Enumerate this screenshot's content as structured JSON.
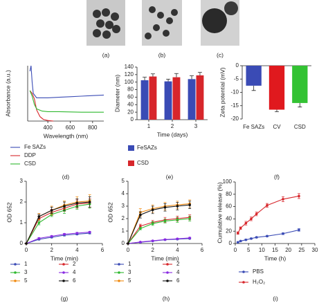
{
  "images": [
    "(a)",
    "(b)",
    "(c)"
  ],
  "chart_data": [
    {
      "type": "line",
      "panel": "(d)",
      "xlabel": "Wavelength (nm)",
      "ylabel": "Absorbance (a.u.)",
      "xlim": [
        220,
        900
      ],
      "xticks": [
        400,
        600,
        800
      ],
      "ylim": [
        0,
        1
      ],
      "markers": false,
      "series": [
        {
          "name": "Fe SAZs",
          "color": "#3a4bb5",
          "x": [
            240,
            250,
            260,
            270,
            300,
            400,
            500,
            600,
            700,
            800,
            900
          ],
          "values": [
            0.9,
            1.0,
            0.7,
            0.5,
            0.42,
            0.42,
            0.43,
            0.44,
            0.45,
            0.46,
            0.47
          ]
        },
        {
          "name": "DDP",
          "color": "#d7262b",
          "x": [
            240,
            260,
            280,
            300,
            330,
            360,
            400,
            450
          ],
          "values": [
            0.55,
            0.5,
            0.4,
            0.2,
            0.08,
            0.03,
            0.01,
            0
          ]
        },
        {
          "name": "CSD",
          "color": "#2fb82f",
          "x": [
            240,
            260,
            280,
            300,
            350,
            400,
            500,
            700,
            900
          ],
          "values": [
            0.55,
            0.45,
            0.3,
            0.22,
            0.18,
            0.17,
            0.17,
            0.16,
            0.16
          ]
        }
      ]
    },
    {
      "type": "bar",
      "panel": "(e)",
      "xlabel": "Time (days)",
      "ylabel": "Diameter (nm)",
      "categories": [
        "1",
        "2",
        "3"
      ],
      "ylim": [
        0,
        140
      ],
      "yticks": [
        0,
        20,
        40,
        60,
        80,
        100,
        120,
        140
      ],
      "series": [
        {
          "name": "FeSAZs",
          "color": "#3a4bb5",
          "values": [
            105,
            102,
            108
          ],
          "errors": [
            8,
            6,
            9
          ]
        },
        {
          "name": "CSD",
          "color": "#d7262b",
          "values": [
            115,
            113,
            118
          ],
          "errors": [
            7,
            10,
            8
          ]
        }
      ]
    },
    {
      "type": "bar",
      "panel": "(f)",
      "ylabel": "Zeta potential (mV)",
      "categories": [
        "Fe SAZs",
        "CV",
        "CSD"
      ],
      "ylim": [
        -20,
        0
      ],
      "yticks": [
        0,
        -5,
        -10,
        -15,
        -20
      ],
      "values": [
        -7.5,
        -16.5,
        -14
      ],
      "errors": [
        1.8,
        0.8,
        1.5
      ],
      "colors": [
        "#3a4bb5",
        "#e0191e",
        "#33c233"
      ]
    },
    {
      "type": "line",
      "panel": "(g)",
      "xlabel": "Time (min)",
      "ylabel": "OD 652",
      "xlim": [
        0,
        6
      ],
      "xticks": [
        0,
        2,
        4,
        6
      ],
      "ylim": [
        0,
        3
      ],
      "yticks": [
        0,
        1,
        2,
        3
      ],
      "markers": true,
      "x": [
        0,
        1,
        2,
        3,
        4,
        5
      ],
      "series": [
        {
          "name": "1",
          "color": "#3a4bb5",
          "values": [
            0,
            0.2,
            0.3,
            0.4,
            0.45,
            0.5
          ],
          "errors": [
            0,
            0.03,
            0.03,
            0.04,
            0.04,
            0.04
          ]
        },
        {
          "name": "2",
          "color": "#d7262b",
          "values": [
            0,
            1.2,
            1.5,
            1.7,
            1.9,
            1.95
          ],
          "errors": [
            0,
            0.1,
            0.15,
            0.15,
            0.2,
            0.2
          ]
        },
        {
          "name": "3",
          "color": "#2fb82f",
          "values": [
            0,
            1.0,
            1.4,
            1.6,
            1.8,
            1.9
          ],
          "errors": [
            0,
            0.1,
            0.1,
            0.15,
            0.15,
            0.2
          ]
        },
        {
          "name": "4",
          "color": "#8a2be2",
          "values": [
            0,
            0.25,
            0.35,
            0.45,
            0.5,
            0.55
          ],
          "errors": [
            0,
            0.03,
            0.03,
            0.04,
            0.04,
            0.04
          ]
        },
        {
          "name": "5",
          "color": "#f08a10",
          "values": [
            0,
            1.3,
            1.6,
            1.85,
            2.0,
            2.05
          ],
          "errors": [
            0,
            0.15,
            0.2,
            0.2,
            0.25,
            0.3
          ]
        },
        {
          "name": "6",
          "color": "#111111",
          "values": [
            0,
            1.3,
            1.6,
            1.8,
            1.95,
            2.0
          ],
          "errors": [
            0,
            0.1,
            0.15,
            0.2,
            0.2,
            0.25
          ]
        }
      ]
    },
    {
      "type": "line",
      "panel": "(h)",
      "xlabel": "Time (min)",
      "ylabel": "OD 652",
      "xlim": [
        0,
        6
      ],
      "xticks": [
        0,
        2,
        4,
        6
      ],
      "ylim": [
        0,
        5
      ],
      "yticks": [
        0,
        1,
        2,
        3,
        4,
        5
      ],
      "markers": true,
      "x": [
        0,
        1,
        2,
        3,
        4,
        5
      ],
      "series": [
        {
          "name": "1",
          "color": "#3a4bb5",
          "values": [
            0,
            0.1,
            0.2,
            0.3,
            0.35,
            0.4
          ],
          "errors": [
            0,
            0.03,
            0.03,
            0.04,
            0.04,
            0.05
          ]
        },
        {
          "name": "2",
          "color": "#d7262b",
          "values": [
            0,
            1.4,
            1.7,
            1.9,
            2.0,
            2.1
          ],
          "errors": [
            0,
            0.15,
            0.15,
            0.2,
            0.2,
            0.2
          ]
        },
        {
          "name": "3",
          "color": "#2fb82f",
          "values": [
            0,
            1.2,
            1.6,
            1.8,
            1.9,
            2.0
          ],
          "errors": [
            0,
            0.1,
            0.15,
            0.15,
            0.2,
            0.2
          ]
        },
        {
          "name": "4",
          "color": "#8a2be2",
          "values": [
            0,
            0.12,
            0.22,
            0.32,
            0.38,
            0.45
          ],
          "errors": [
            0,
            0.03,
            0.03,
            0.04,
            0.04,
            0.05
          ]
        },
        {
          "name": "5",
          "color": "#f08a10",
          "values": [
            0,
            2.5,
            2.8,
            3.0,
            3.1,
            3.2
          ],
          "errors": [
            0,
            0.3,
            0.3,
            0.3,
            0.3,
            0.3
          ]
        },
        {
          "name": "6",
          "color": "#111111",
          "values": [
            0,
            2.3,
            2.7,
            2.9,
            3.0,
            3.1
          ],
          "errors": [
            0,
            0.25,
            0.3,
            0.3,
            0.3,
            0.3
          ]
        }
      ]
    },
    {
      "type": "line",
      "panel": "(i)",
      "xlabel": "Time (h)",
      "ylabel": "Cumulative release (%)",
      "xlim": [
        0,
        30
      ],
      "xticks": [
        0,
        5,
        10,
        15,
        20,
        25,
        30
      ],
      "ylim": [
        0,
        100
      ],
      "yticks": [
        0,
        20,
        40,
        60,
        80,
        100
      ],
      "markers": true,
      "x": [
        1,
        2,
        4,
        6,
        8,
        12,
        18,
        24
      ],
      "series": [
        {
          "name": "PBS",
          "color": "#3a4bb5",
          "values": [
            2,
            4,
            6,
            8,
            10,
            12,
            16,
            22
          ],
          "errors": [
            1,
            1,
            1,
            1,
            1,
            1,
            1.5,
            2
          ]
        },
        {
          "name": "H₂O₂",
          "color": "#d7262b",
          "values": [
            17,
            25,
            33,
            40,
            48,
            62,
            72,
            77
          ],
          "errors": [
            2,
            2,
            3,
            3,
            3,
            3,
            4,
            4
          ]
        }
      ]
    }
  ]
}
